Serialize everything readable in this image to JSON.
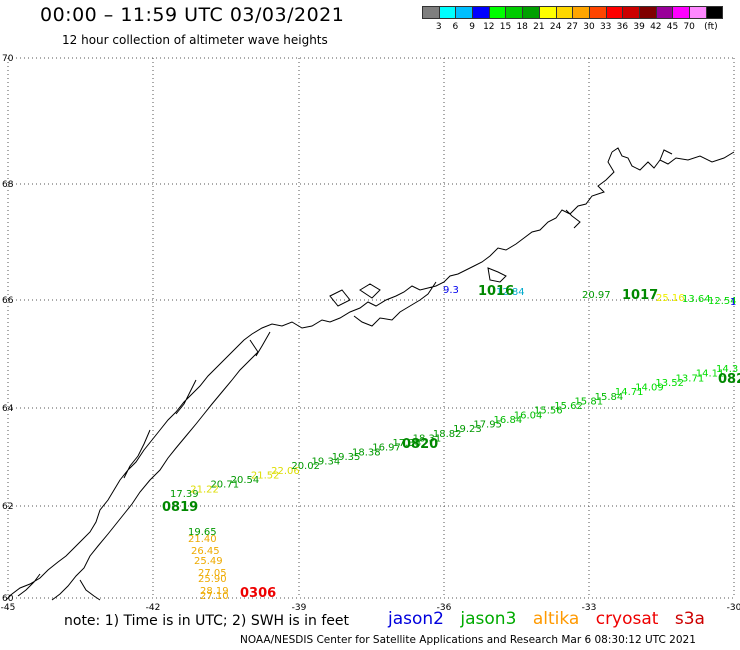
{
  "title": "00:00 – 11:59 UTC 03/03/2021",
  "subtitle": "12 hour collection of altimeter wave heights",
  "colorbar": {
    "colors": [
      "#7f7f7f",
      "#00ffff",
      "#00bfff",
      "#0000ff",
      "#00ff00",
      "#00cc00",
      "#00a000",
      "#ffff00",
      "#ffd700",
      "#ffa500",
      "#ff4500",
      "#ff0000",
      "#cc0000",
      "#800000",
      "#990099",
      "#ff00ff",
      "#ff88ff",
      "#000000"
    ],
    "labels": [
      "3",
      "6",
      "9",
      "12",
      "15",
      "18",
      "21",
      "24",
      "27",
      "30",
      "33",
      "36",
      "39",
      "42",
      "45",
      "70",
      "(ft)"
    ]
  },
  "axes": {
    "lat_labels": [
      "70",
      "68",
      "66",
      "64",
      "62",
      "60"
    ],
    "lon_labels": [
      "-45",
      "-42",
      "-39",
      "-36",
      "-33",
      "-30"
    ]
  },
  "tracks": {
    "jason3_diag": [
      {
        "t": "17.39",
        "c": "#009900"
      },
      {
        "t": "21.22",
        "c": "#dddd00"
      },
      {
        "t": "20.71",
        "c": "#009900"
      },
      {
        "t": "20.54",
        "c": "#009900"
      },
      {
        "t": "21.52",
        "c": "#dddd00"
      },
      {
        "t": "22.06",
        "c": "#dddd00"
      },
      {
        "t": "20.02",
        "c": "#009900"
      },
      {
        "t": "19.34",
        "c": "#009900"
      },
      {
        "t": "19.35",
        "c": "#009900"
      },
      {
        "t": "18.38",
        "c": "#009900"
      },
      {
        "t": "16.97",
        "c": "#009900"
      },
      {
        "t": "17.38",
        "c": "#009900"
      },
      {
        "t": "18.31",
        "c": "#009900"
      },
      {
        "t": "18.82",
        "c": "#009900"
      },
      {
        "t": "19.23",
        "c": "#009900"
      },
      {
        "t": "17.95",
        "c": "#009900"
      },
      {
        "t": "16.84",
        "c": "#00bb00"
      },
      {
        "t": "16.04",
        "c": "#00bb00"
      },
      {
        "t": "15.56",
        "c": "#00bb00"
      },
      {
        "t": "15.62",
        "c": "#00bb00"
      },
      {
        "t": "15.81",
        "c": "#00bb00"
      },
      {
        "t": "15.84",
        "c": "#00bb00"
      },
      {
        "t": "14.71",
        "c": "#00dd00"
      },
      {
        "t": "14.09",
        "c": "#00dd00"
      },
      {
        "t": "13.52",
        "c": "#00dd00"
      },
      {
        "t": "13.71",
        "c": "#00dd00"
      },
      {
        "t": "14.11",
        "c": "#00dd00"
      },
      {
        "t": "14.3",
        "c": "#00dd00"
      }
    ],
    "altika_vertical": [
      {
        "t": "19.65",
        "c": "#009900"
      },
      {
        "t": "21.40",
        "c": "#eeaa00"
      },
      {
        "t": "26.45",
        "c": "#eeaa00"
      },
      {
        "t": "25.49",
        "c": "#eeaa00"
      },
      {
        "t": "27.05",
        "c": "#eeaa00"
      },
      {
        "t": "25.90",
        "c": "#eeaa00"
      },
      {
        "t": "28.19",
        "c": "#eeaa00"
      },
      {
        "t": "27.10",
        "c": "#eeaa00"
      }
    ],
    "north": [
      {
        "t": "9.3",
        "c": "#0000ee"
      },
      {
        "t": "12.84",
        "c": "#00aacc"
      },
      {
        "t": "20.97",
        "c": "#009900"
      },
      {
        "t": "25.16",
        "c": "#eeee00"
      },
      {
        "t": "13.64",
        "c": "#00dd00"
      },
      {
        "t": "12.54",
        "c": "#00dd00"
      },
      {
        "t": "1",
        "c": "#0000ee"
      }
    ],
    "times": [
      {
        "t": "0819",
        "c": "#008800"
      },
      {
        "t": "0820",
        "c": "#008800"
      },
      {
        "t": "082",
        "c": "#008800"
      },
      {
        "t": "1016",
        "c": "#008800"
      },
      {
        "t": "1017",
        "c": "#008800"
      },
      {
        "t": "0306",
        "c": "#ee0000"
      }
    ]
  },
  "note": "note:  1) Time is in UTC;  2) SWH is in feet",
  "legend": [
    {
      "label": "jason2",
      "color": "#0000dd"
    },
    {
      "label": "jason3",
      "color": "#00aa00"
    },
    {
      "label": "altika",
      "color": "#ff9900"
    },
    {
      "label": "cryosat",
      "color": "#ee0000"
    },
    {
      "label": "s3a",
      "color": "#cc0000"
    }
  ],
  "footer": "NOAA/NESDIS Center for Satellite Applications and Research    Mar  6 08:30:12 UTC 2021"
}
